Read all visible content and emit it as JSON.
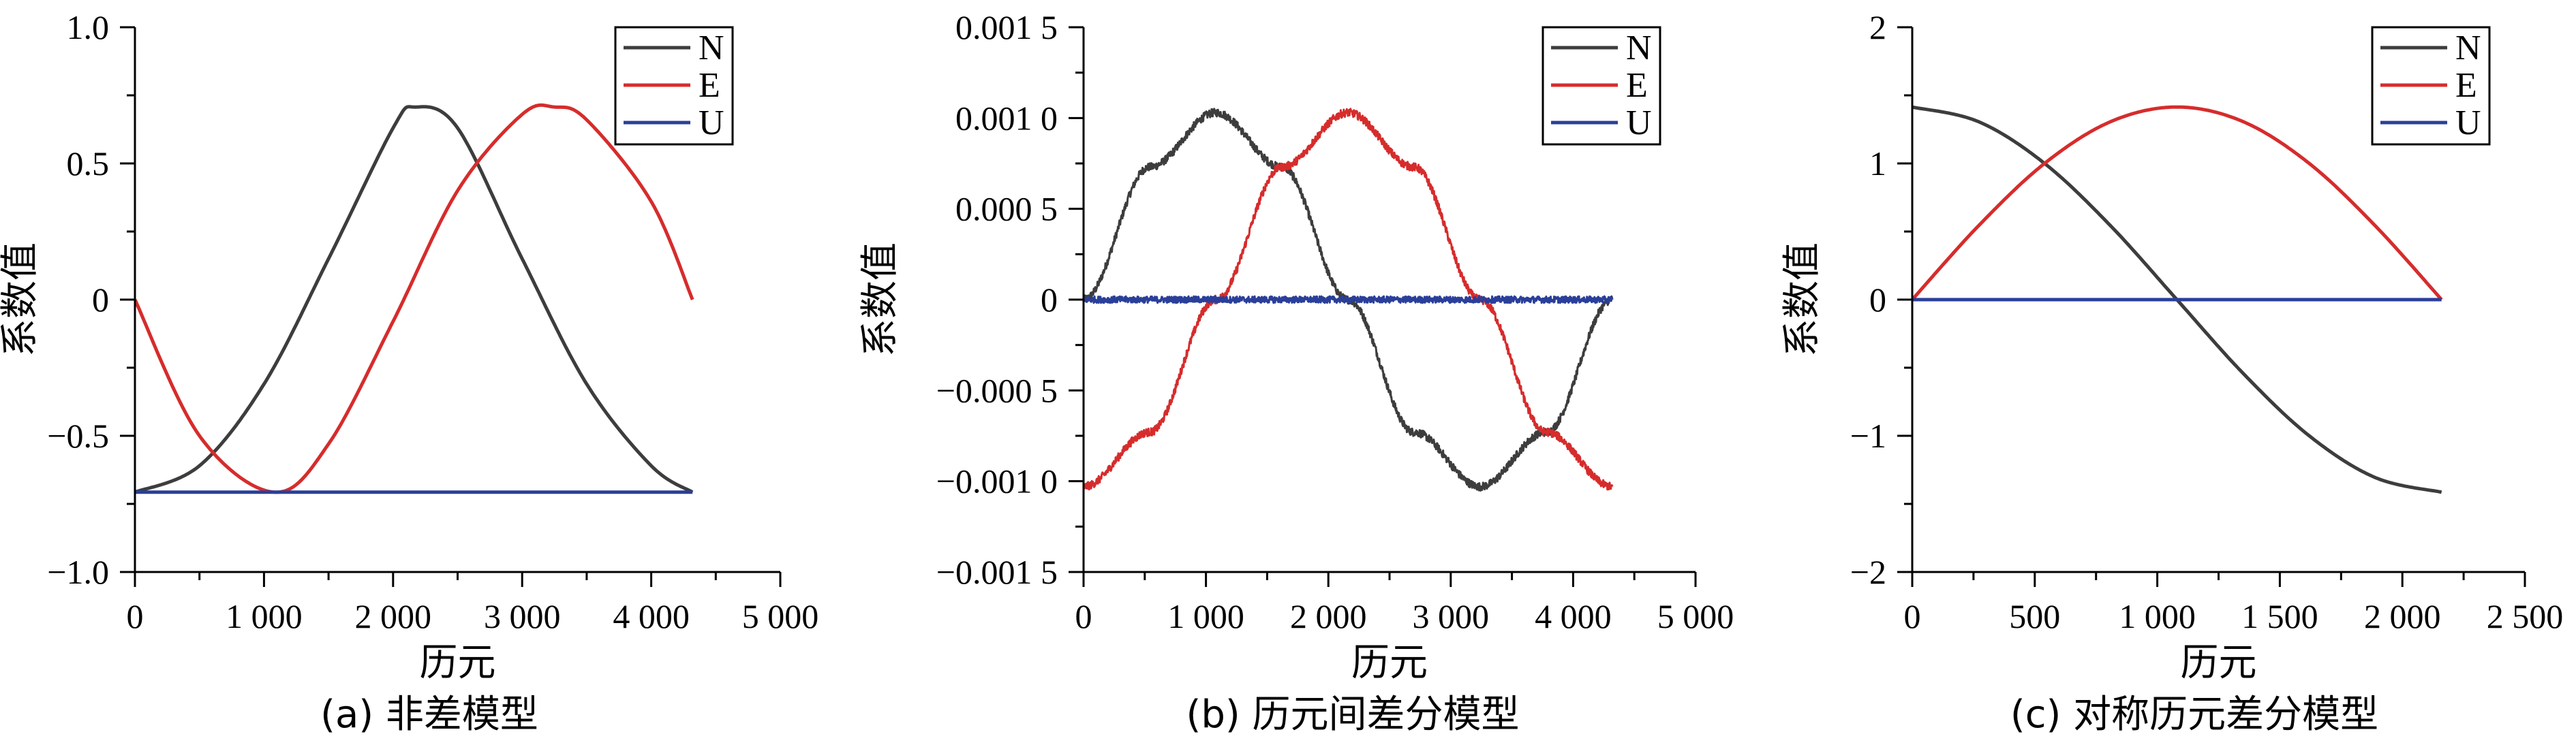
{
  "chart_data": [
    {
      "type": "line",
      "caption": "(a) 非差模型",
      "xlabel": "历元",
      "ylabel": "系数值",
      "xlim": [
        0,
        5000
      ],
      "ylim": [
        -1.0,
        1.0
      ],
      "xticks": [
        0,
        1000,
        2000,
        3000,
        4000,
        5000
      ],
      "xtick_labels": [
        "0",
        "1 000",
        "2 000",
        "3 000",
        "4 000",
        "5 000"
      ],
      "yticks": [
        -1.0,
        -0.5,
        0,
        0.5,
        1.0
      ],
      "ytick_labels": [
        "−1.0",
        "−0.5",
        "0",
        "0.5",
        "1.0"
      ],
      "legend": [
        "N",
        "E",
        "U"
      ],
      "legend_position": "top-right",
      "series": [
        {
          "name": "N",
          "color": "#3d3d3d",
          "x": [
            0,
            500,
            1000,
            1500,
            2000,
            2170,
            2500,
            3000,
            3500,
            4000,
            4320
          ],
          "y": [
            -0.707,
            -0.61,
            -0.31,
            0.15,
            0.63,
            0.707,
            0.63,
            0.15,
            -0.31,
            -0.61,
            -0.707
          ]
        },
        {
          "name": "E",
          "color": "#d62c2c",
          "x": [
            0,
            500,
            1080,
            1500,
            2000,
            2500,
            3000,
            3250,
            3500,
            4000,
            4320
          ],
          "y": [
            0.0,
            -0.5,
            -0.707,
            -0.53,
            -0.08,
            0.4,
            0.68,
            0.707,
            0.66,
            0.36,
            0.0
          ]
        },
        {
          "name": "U",
          "color": "#2a3f99",
          "x": [
            0,
            4320
          ],
          "y": [
            -0.707,
            -0.707
          ]
        }
      ]
    },
    {
      "type": "line",
      "caption": "(b) 历元间差分模型",
      "xlabel": "历元",
      "ylabel": "系数值",
      "xlim": [
        0,
        5000
      ],
      "ylim": [
        -0.0015,
        0.0015
      ],
      "xticks": [
        0,
        1000,
        2000,
        3000,
        4000,
        5000
      ],
      "xtick_labels": [
        "0",
        "1 000",
        "2 000",
        "3 000",
        "4 000",
        "5 000"
      ],
      "yticks": [
        -0.0015,
        -0.001,
        -0.0005,
        0,
        0.0005,
        0.001,
        0.0015
      ],
      "ytick_labels": [
        "−0.001 5",
        "−0.001 0",
        "−0.000 5",
        "0",
        "0.000 5",
        "0.001 0",
        "0.001 5"
      ],
      "legend": [
        "N",
        "E",
        "U"
      ],
      "legend_position": "top-right",
      "series": [
        {
          "name": "N",
          "color": "#3d3d3d",
          "x": [
            0,
            540,
            1080,
            1620,
            2160,
            2700,
            3240,
            3780,
            4320
          ],
          "y": [
            0.0,
            0.00073,
            0.00103,
            0.00073,
            0.0,
            -0.00073,
            -0.00103,
            -0.00073,
            0.0
          ]
        },
        {
          "name": "E",
          "color": "#d62c2c",
          "x": [
            0,
            540,
            1080,
            1620,
            2160,
            2700,
            3240,
            3780,
            4320
          ],
          "y": [
            -0.00103,
            -0.00073,
            0.0,
            0.00073,
            0.00103,
            0.00073,
            0.0,
            -0.00073,
            -0.00103
          ]
        },
        {
          "name": "U",
          "color": "#2a3f99",
          "x": [
            0,
            4320
          ],
          "y": [
            0.0,
            0.0
          ]
        }
      ]
    },
    {
      "type": "line",
      "caption": "(c) 对称历元差分模型",
      "xlabel": "历元",
      "ylabel": "系数值",
      "xlim": [
        0,
        2500
      ],
      "ylim": [
        -2,
        2
      ],
      "xticks": [
        0,
        500,
        1000,
        1500,
        2000,
        2500
      ],
      "xtick_labels": [
        "0",
        "500",
        "1 000",
        "1 500",
        "2 000",
        "2 500"
      ],
      "yticks": [
        -2,
        -1,
        0,
        1,
        2
      ],
      "ytick_labels": [
        "−2",
        "−1",
        "0",
        "1",
        "2"
      ],
      "legend": [
        "N",
        "E",
        "U"
      ],
      "legend_position": "top-right",
      "series": [
        {
          "name": "N",
          "color": "#3d3d3d",
          "x": [
            0,
            270,
            540,
            810,
            1080,
            1350,
            1620,
            1890,
            2160
          ],
          "y": [
            1.414,
            1.307,
            1.0,
            0.541,
            0.0,
            -0.541,
            -1.0,
            -1.307,
            -1.414
          ]
        },
        {
          "name": "E",
          "color": "#d62c2c",
          "x": [
            0,
            270,
            540,
            810,
            1080,
            1350,
            1620,
            1890,
            2160
          ],
          "y": [
            0.0,
            0.541,
            1.0,
            1.307,
            1.414,
            1.307,
            1.0,
            0.541,
            0.0
          ]
        },
        {
          "name": "U",
          "color": "#2a3f99",
          "x": [
            0,
            2160
          ],
          "y": [
            0.0,
            0.0
          ]
        }
      ]
    }
  ]
}
